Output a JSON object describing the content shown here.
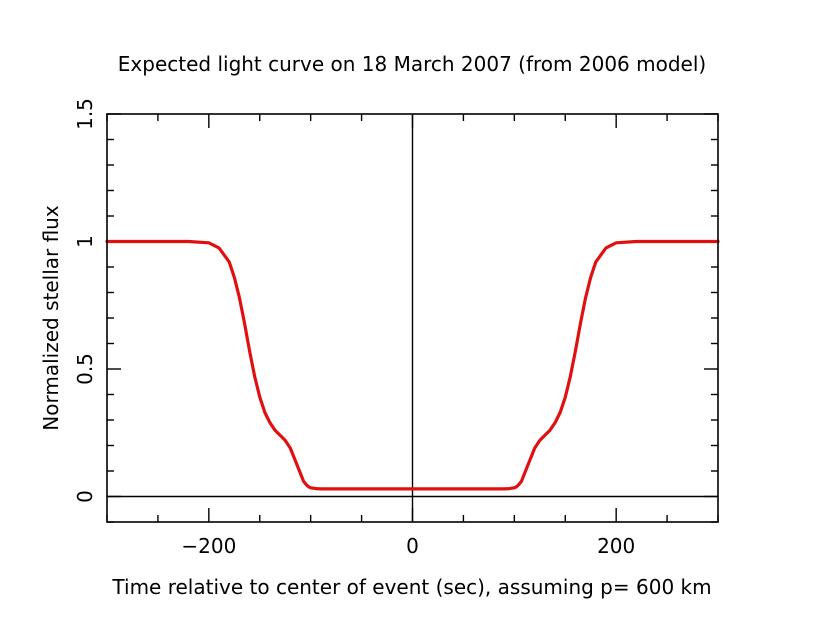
{
  "chart_data": {
    "type": "line",
    "title": "Expected light curve on 18 March 2007 (from 2006 model)",
    "xlabel": "Time relative to center of event (sec), assuming p= 600 km",
    "ylabel": "Normalized stellar flux",
    "xlim": [
      -300,
      300
    ],
    "ylim": [
      -0.1,
      1.5
    ],
    "x_ticks": [
      -200,
      0,
      200
    ],
    "x_tick_labels": [
      "−200",
      "0",
      "200"
    ],
    "y_ticks": [
      0,
      0.5,
      1,
      1.5
    ],
    "y_tick_labels": [
      "0",
      "0.5",
      "1",
      "1.5"
    ],
    "grid": false,
    "reference_lines": {
      "horizontal": 0,
      "vertical": 0
    },
    "series": [
      {
        "color": "#e01010",
        "x": [
          -300,
          -220,
          -200,
          -190,
          -180,
          -175,
          -170,
          -165,
          -160,
          -155,
          -150,
          -145,
          -140,
          -135,
          -130,
          -125,
          -120,
          -115,
          -110,
          -107,
          -104,
          -102,
          -100,
          -95,
          -90,
          -50,
          0,
          50,
          90,
          95,
          100,
          102,
          104,
          107,
          110,
          115,
          120,
          125,
          130,
          135,
          140,
          145,
          150,
          155,
          160,
          165,
          170,
          175,
          180,
          190,
          200,
          220,
          300
        ],
        "y": [
          1.0,
          1.0,
          0.995,
          0.975,
          0.92,
          0.86,
          0.78,
          0.68,
          0.57,
          0.47,
          0.39,
          0.33,
          0.29,
          0.26,
          0.24,
          0.22,
          0.19,
          0.14,
          0.09,
          0.06,
          0.045,
          0.038,
          0.034,
          0.031,
          0.03,
          0.03,
          0.03,
          0.03,
          0.03,
          0.031,
          0.034,
          0.038,
          0.045,
          0.06,
          0.09,
          0.14,
          0.19,
          0.22,
          0.24,
          0.26,
          0.29,
          0.33,
          0.39,
          0.47,
          0.57,
          0.68,
          0.78,
          0.86,
          0.92,
          0.975,
          0.995,
          1.0,
          1.0
        ]
      }
    ]
  }
}
